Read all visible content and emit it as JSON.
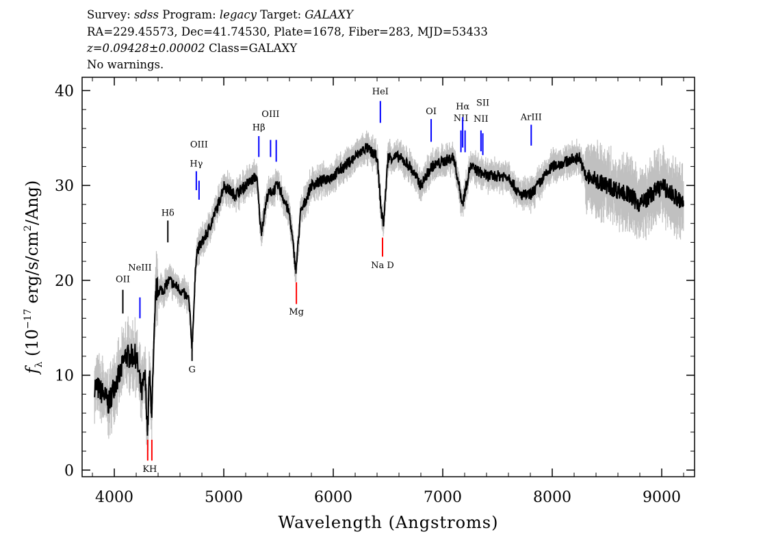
{
  "header": {
    "line1": {
      "survey_label": "Survey: ",
      "survey": "sdss",
      "program_label": " Program: ",
      "program": "legacy",
      "target_label": " Target: ",
      "target": "GALAXY"
    },
    "line2": "RA=229.45573, Dec=41.74530, Plate=1678, Fiber=283, MJD=53433",
    "line3": {
      "z": "z=0.09428±0.00002",
      "class": " Class=GALAXY"
    },
    "line4": "No warnings."
  },
  "chart_data": {
    "type": "line",
    "xlabel": "Wavelength (Angstroms)",
    "ylabel": "f_λ (10^-17 erg/s/cm^2/Ang)",
    "xlim": [
      3706,
      9300
    ],
    "ylim": [
      -0.7,
      41.4
    ],
    "xticks": [
      4000,
      5000,
      6000,
      7000,
      8000,
      9000
    ],
    "yticks": [
      0,
      10,
      20,
      30,
      40
    ],
    "colors": {
      "flux": "#000000",
      "error": "#c0c0c0",
      "emission": "#0000ff",
      "absorption": "#ff0000",
      "other": "#000000"
    },
    "flux": {
      "x": [
        3820,
        3900,
        3950,
        4000,
        4050,
        4100,
        4200,
        4250,
        4280,
        4305,
        4320,
        4343,
        4380,
        4450,
        4500,
        4600,
        4680,
        4710,
        4750,
        4850,
        4950,
        5000,
        5100,
        5200,
        5300,
        5340,
        5400,
        5500,
        5600,
        5660,
        5700,
        5800,
        6000,
        6200,
        6300,
        6400,
        6440,
        6460,
        6500,
        6600,
        6700,
        6800,
        6900,
        7100,
        7180,
        7250,
        7400,
        7600,
        7700,
        7800,
        8000,
        8250,
        8300,
        8500,
        8700,
        8800,
        9000,
        9200
      ],
      "y": [
        9,
        8,
        7,
        9,
        10,
        12,
        12,
        8,
        10,
        4,
        10,
        6,
        19,
        19,
        20,
        19,
        18,
        13,
        23,
        25,
        28,
        30,
        29,
        30,
        31,
        25,
        29,
        30,
        27,
        21,
        27,
        30,
        31,
        33,
        34,
        33,
        27,
        26,
        33,
        33,
        32,
        30,
        32,
        33,
        28,
        32,
        31,
        31,
        29,
        29,
        32,
        33,
        31,
        30,
        29,
        28,
        30,
        28
      ]
    },
    "lines": [
      {
        "label": "OII",
        "wavelength": 4078,
        "kind": "other",
        "y0": 16.5,
        "y1": 19,
        "ly": 19.8
      },
      {
        "label": "NeIII",
        "wavelength": 4234,
        "kind": "emission",
        "y0": 16,
        "y1": 18.2,
        "ly": 19
      },
      {
        "label": "Hδ",
        "wavelength": 4489,
        "kind": "other",
        "y0": 24,
        "y1": 26.3,
        "ly": 26.8
      },
      {
        "label": "Hγ",
        "wavelength": 4749,
        "kind": "emission",
        "y0": 29.5,
        "y1": 31.5,
        "ly": 32
      },
      {
        "label": "OIII",
        "wavelength": 4774,
        "kind": "emission",
        "y0": 28.5,
        "y1": 30.5,
        "ly": 31
      },
      {
        "label": "Hβ",
        "wavelength": 5320,
        "kind": "emission",
        "y0": 33,
        "y1": 35.2,
        "ly": 35.8
      },
      {
        "label": "OIII",
        "wavelength": 5427,
        "kind": "emission",
        "y0": 33,
        "y1": 34.8,
        "ly": 35.2
      },
      {
        "label": "",
        "wavelength": 5479,
        "kind": "emission",
        "y0": 32.5,
        "y1": 34.8,
        "ly": 0
      },
      {
        "label": "HeI",
        "wavelength": 6430,
        "kind": "emission",
        "y0": 36.6,
        "y1": 38.9,
        "ly": 39.6
      },
      {
        "label": "OI",
        "wavelength": 6894,
        "kind": "emission",
        "y0": 34.6,
        "y1": 37,
        "ly": 37.5
      },
      {
        "label": "NII",
        "wavelength": 7166,
        "kind": "emission",
        "y0": 33.5,
        "y1": 35.8,
        "ly": 36.8
      },
      {
        "label": "Hα",
        "wavelength": 7182,
        "kind": "emission",
        "y0": 34,
        "y1": 37.2,
        "ly": 38
      },
      {
        "label": "",
        "wavelength": 7204,
        "kind": "emission",
        "y0": 33.5,
        "y1": 35.8,
        "ly": 0
      },
      {
        "label": "NII",
        "wavelength": 7349,
        "kind": "emission",
        "y0": 33.6,
        "y1": 35.8,
        "ly": 36.7
      },
      {
        "label": "SII",
        "wavelength": 7366,
        "kind": "emission",
        "y0": 33.2,
        "y1": 35.5,
        "ly": 36.4
      },
      {
        "label": "ArIII",
        "wavelength": 7808,
        "kind": "emission",
        "y0": 34.2,
        "y1": 36.4,
        "ly": 36.9
      },
      {
        "label": "KH",
        "wavelength": 4324,
        "kind": "absorption",
        "y0": 1,
        "y1": 3.2,
        "ly": -0.2,
        "pair": [
          4305,
          4343
        ]
      },
      {
        "label": "G",
        "wavelength": 4710,
        "kind": "other",
        "y0": 11.5,
        "y1": 13.8,
        "ly": 10.3
      },
      {
        "label": "Mg",
        "wavelength": 5663,
        "kind": "absorption",
        "y0": 17.5,
        "y1": 19.8,
        "ly": 16.4
      },
      {
        "label": "Na D",
        "wavelength": 6450,
        "kind": "absorption",
        "y0": 22.5,
        "y1": 24.5,
        "ly": 21.3
      }
    ]
  }
}
